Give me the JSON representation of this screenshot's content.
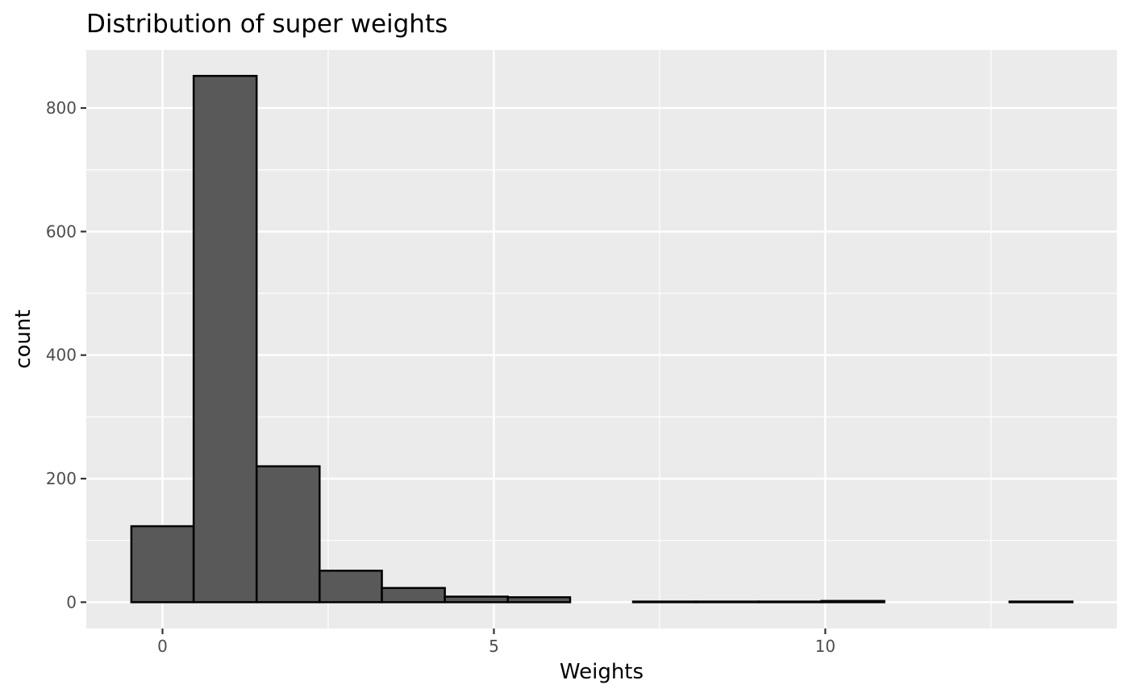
{
  "chart_data": {
    "type": "bar",
    "title": "Distribution of super weights",
    "xlabel": "Weights",
    "ylabel": "count",
    "bin_width": 0.947,
    "bins": [
      {
        "x0": -0.47,
        "x1": 0.47,
        "count": 123
      },
      {
        "x0": 0.47,
        "x1": 1.42,
        "count": 852
      },
      {
        "x0": 1.42,
        "x1": 2.37,
        "count": 220
      },
      {
        "x0": 2.37,
        "x1": 3.31,
        "count": 51
      },
      {
        "x0": 3.31,
        "x1": 4.26,
        "count": 23
      },
      {
        "x0": 4.26,
        "x1": 5.21,
        "count": 9
      },
      {
        "x0": 5.21,
        "x1": 6.15,
        "count": 8
      },
      {
        "x0": 6.15,
        "x1": 7.1,
        "count": 0
      },
      {
        "x0": 7.1,
        "x1": 8.05,
        "count": 1
      },
      {
        "x0": 8.05,
        "x1": 8.99,
        "count": 1
      },
      {
        "x0": 8.99,
        "x1": 9.94,
        "count": 1
      },
      {
        "x0": 9.94,
        "x1": 10.89,
        "count": 2
      },
      {
        "x0": 10.89,
        "x1": 11.83,
        "count": 0
      },
      {
        "x0": 11.83,
        "x1": 12.78,
        "count": 0
      },
      {
        "x0": 12.78,
        "x1": 13.73,
        "count": 1
      }
    ],
    "xlim": [
      -1.15,
      14.4
    ],
    "ylim": [
      -42.6,
      894
    ],
    "x_major_ticks": [
      0,
      5,
      10
    ],
    "x_minor_ticks": [
      2.5,
      7.5,
      12.5
    ],
    "y_major_ticks": [
      0,
      200,
      400,
      600,
      800
    ],
    "y_minor_ticks": [
      100,
      300,
      500,
      700
    ],
    "grid": true,
    "legend": "none"
  },
  "colors": {
    "panel": "#ebebeb",
    "bar_fill": "#595959",
    "bar_outline": "#000000",
    "grid": "#ffffff"
  }
}
